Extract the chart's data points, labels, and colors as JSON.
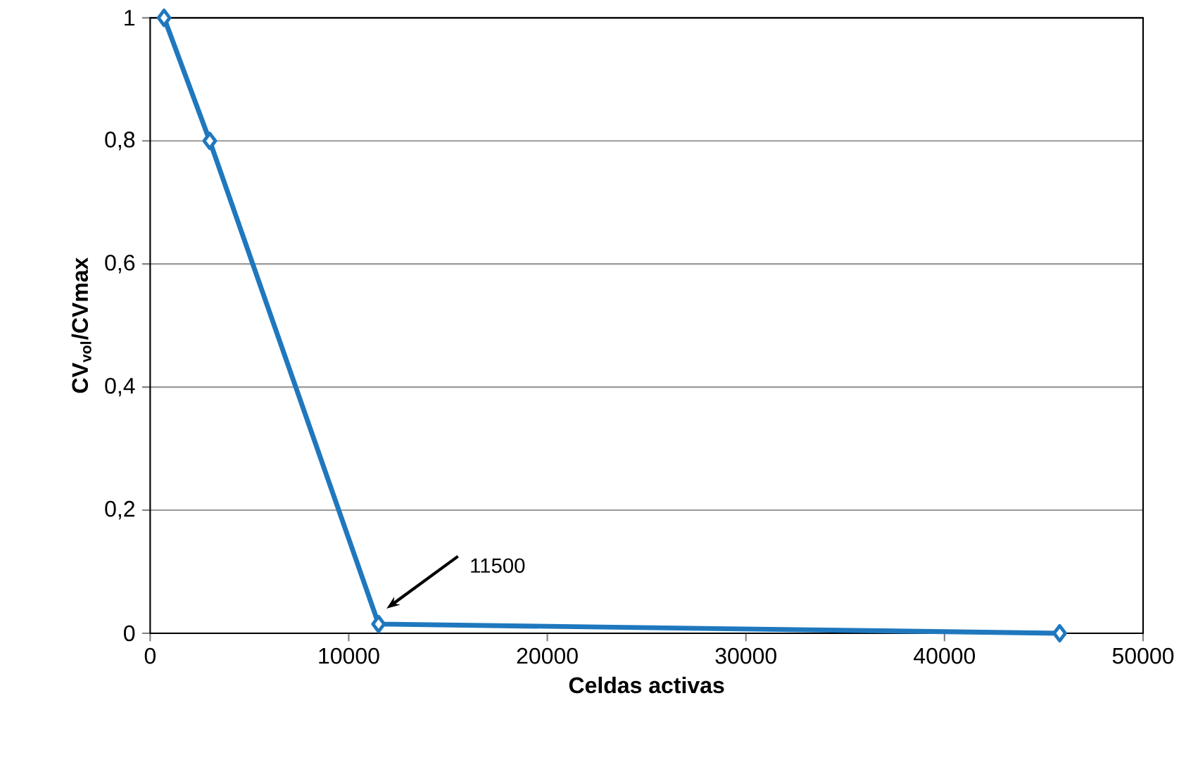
{
  "chart_data": {
    "type": "line",
    "xlabel": "Celdas activas",
    "ylabel": "CV$_{vol}$/CVmax",
    "x": [
      700,
      3000,
      11500,
      45800
    ],
    "series": [
      {
        "color": "#1f78be",
        "values": [
          1,
          0.8,
          0.015,
          0
        ]
      }
    ],
    "xlim": [
      0,
      50000
    ],
    "xticks": [
      0,
      10000,
      20000,
      30000,
      40000,
      50000
    ],
    "ylim": [
      0,
      1
    ],
    "yticks": [
      0,
      {
        "value": 0.2,
        "label": "0,2"
      },
      {
        "value": 0.4,
        "label": "0,4"
      },
      {
        "value": 0.6,
        "label": "0,6"
      },
      {
        "value": 0.8,
        "label": "0,8"
      },
      1
    ],
    "grid": "y",
    "marker": "diamond",
    "line_style": "solid",
    "annotations": [
      "11500"
    ]
  }
}
